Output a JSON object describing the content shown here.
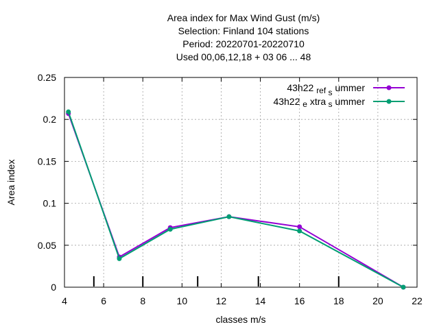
{
  "chart_data": {
    "type": "line",
    "title_lines": [
      "Area index  for Max Wind Gust (m/s)",
      "Selection: Finland    104 stations",
      "Period: 20220701-20220710",
      "Used  00,06,12,18  + 03 06 ... 48"
    ],
    "xlabel": "classes m/s",
    "ylabel": "Area index",
    "xlim": [
      4,
      22
    ],
    "ylim": [
      0,
      0.25
    ],
    "x_ticks": [
      4,
      6,
      8,
      10,
      12,
      14,
      16,
      18,
      20,
      22
    ],
    "x_tick_labels": [
      "4",
      "6",
      "8",
      "10",
      "12",
      "14",
      "16",
      "18",
      "20",
      "22"
    ],
    "y_ticks": [
      0,
      0.05,
      0.1,
      0.15,
      0.2,
      0.25
    ],
    "y_tick_labels": [
      "0",
      "0.05",
      "0.1",
      "0.15",
      "0.2",
      "0.25"
    ],
    "grid": true,
    "legend_position": "top-right",
    "class_markers": [
      5.5,
      8,
      10.8,
      13.9,
      18
    ],
    "series": [
      {
        "name": "43h22_ref_summer",
        "legend_parts": [
          "43h22",
          "ref",
          "s",
          "ummer"
        ],
        "color": "#9400d3",
        "x": [
          4.2,
          6.8,
          9.4,
          12.4,
          16.0,
          21.3
        ],
        "y": [
          0.207,
          0.036,
          0.071,
          0.084,
          0.072,
          0.0
        ]
      },
      {
        "name": "43h22_extra_summer",
        "legend_parts": [
          "43h22",
          "e",
          "xtra",
          "s",
          "ummer"
        ],
        "color": "#009e73",
        "x": [
          4.2,
          6.8,
          9.4,
          12.4,
          16.0,
          21.3
        ],
        "y": [
          0.209,
          0.034,
          0.069,
          0.084,
          0.067,
          0.0
        ]
      }
    ]
  }
}
